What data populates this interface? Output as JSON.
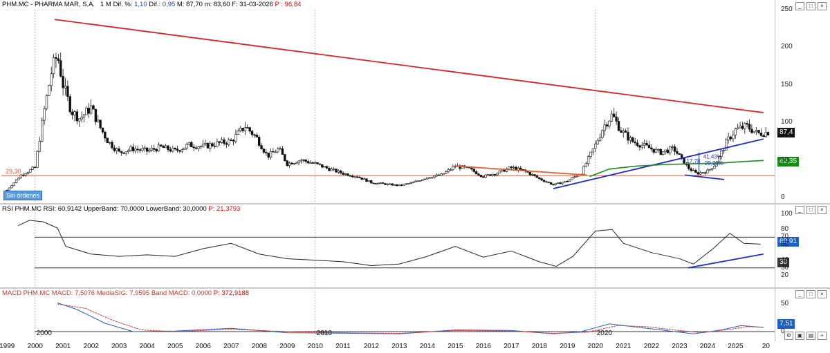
{
  "price_panel": {
    "header": {
      "symbol": "PHM.MC - PHARMA MAR, S.A.",
      "interval": "1 M",
      "dif_pct_label": "Dif. %:",
      "dif_pct": "1,10",
      "dif_label": "Dif.:",
      "dif": "0,95",
      "max_label": "M:",
      "max": "87,70",
      "min_label": "m:",
      "min": "83,60",
      "date_label": "F:",
      "date": "31-03-2026",
      "p_label": "P :",
      "p": "96,84"
    },
    "ticks": [
      "250",
      "200",
      "150",
      "100",
      "50",
      "0"
    ],
    "tags": {
      "price": "87,4",
      "ma": "49,35"
    },
    "support_label": "29,30",
    "badge": "Sin órdenes",
    "annotations": {
      "a": "17,78",
      "b": "41,43%",
      "c": "29,29%"
    }
  },
  "rsi_panel": {
    "header": "RSI PHM.MC RSI: 60,9142 UpperBand: 70,0000 LowerBand: 30,0000",
    "header_p": "P: 21,3793",
    "ticks": [
      "100",
      "80",
      "70",
      "60",
      "40",
      "30",
      "20"
    ],
    "tags": {
      "value": "60,91",
      "lower": "30"
    }
  },
  "macd_panel": {
    "header": "MACD PHM.MC MACD: 7,5076 MediaSIG: 7,9595 Band MACD: 0,0000",
    "header_p": "P: 372,9188",
    "ticks": [
      "50",
      "0"
    ],
    "tags": {
      "value": "7,51"
    }
  },
  "x_axis": {
    "years": [
      "1999",
      "2000",
      "2001",
      "2002",
      "2003",
      "2004",
      "2005",
      "2006",
      "2007",
      "2008",
      "2009",
      "2010",
      "2011",
      "2012",
      "2013",
      "2014",
      "2015",
      "2016",
      "2017",
      "2018",
      "2019",
      "2020",
      "2021",
      "2022",
      "2023",
      "2024",
      "2025",
      "20"
    ],
    "decade_labels": [
      "2000",
      "2010",
      "2020"
    ]
  },
  "chart_data": [
    {
      "type": "candlestick",
      "title": "PHM.MC - PHARMA MAR, S.A.",
      "interval": "1 M",
      "ylim": [
        0,
        250
      ],
      "x_range": [
        "1999",
        "2026"
      ],
      "close_points": [
        {
          "x": 1999.0,
          "y": 10
        },
        {
          "x": 1999.5,
          "y": 30
        },
        {
          "x": 2000.0,
          "y": 40
        },
        {
          "x": 2000.3,
          "y": 110
        },
        {
          "x": 2000.6,
          "y": 170
        },
        {
          "x": 2000.8,
          "y": 190
        },
        {
          "x": 2001.0,
          "y": 150
        },
        {
          "x": 2001.3,
          "y": 115
        },
        {
          "x": 2001.6,
          "y": 105
        },
        {
          "x": 2002.0,
          "y": 120
        },
        {
          "x": 2002.3,
          "y": 95
        },
        {
          "x": 2002.6,
          "y": 75
        },
        {
          "x": 2003.0,
          "y": 60
        },
        {
          "x": 2003.5,
          "y": 65
        },
        {
          "x": 2004.0,
          "y": 62
        },
        {
          "x": 2004.5,
          "y": 67
        },
        {
          "x": 2005.0,
          "y": 62
        },
        {
          "x": 2005.5,
          "y": 70
        },
        {
          "x": 2006.0,
          "y": 68
        },
        {
          "x": 2006.5,
          "y": 72
        },
        {
          "x": 2007.0,
          "y": 75
        },
        {
          "x": 2007.5,
          "y": 95
        },
        {
          "x": 2007.9,
          "y": 80
        },
        {
          "x": 2008.3,
          "y": 55
        },
        {
          "x": 2008.7,
          "y": 65
        },
        {
          "x": 2009.0,
          "y": 45
        },
        {
          "x": 2009.5,
          "y": 50
        },
        {
          "x": 2010.0,
          "y": 45
        },
        {
          "x": 2010.5,
          "y": 38
        },
        {
          "x": 2011.0,
          "y": 32
        },
        {
          "x": 2011.5,
          "y": 28
        },
        {
          "x": 2012.0,
          "y": 20
        },
        {
          "x": 2012.5,
          "y": 18
        },
        {
          "x": 2013.0,
          "y": 16
        },
        {
          "x": 2013.5,
          "y": 20
        },
        {
          "x": 2014.0,
          "y": 27
        },
        {
          "x": 2014.5,
          "y": 30
        },
        {
          "x": 2015.0,
          "y": 42
        },
        {
          "x": 2015.5,
          "y": 38
        },
        {
          "x": 2016.0,
          "y": 28
        },
        {
          "x": 2016.5,
          "y": 33
        },
        {
          "x": 2017.0,
          "y": 40
        },
        {
          "x": 2017.5,
          "y": 35
        },
        {
          "x": 2018.0,
          "y": 25
        },
        {
          "x": 2018.5,
          "y": 17
        },
        {
          "x": 2019.0,
          "y": 22
        },
        {
          "x": 2019.5,
          "y": 33
        },
        {
          "x": 2020.0,
          "y": 70
        },
        {
          "x": 2020.3,
          "y": 95
        },
        {
          "x": 2020.6,
          "y": 110
        },
        {
          "x": 2020.9,
          "y": 90
        },
        {
          "x": 2021.3,
          "y": 75
        },
        {
          "x": 2021.8,
          "y": 68
        },
        {
          "x": 2022.3,
          "y": 60
        },
        {
          "x": 2022.8,
          "y": 65
        },
        {
          "x": 2023.0,
          "y": 55
        },
        {
          "x": 2023.3,
          "y": 40
        },
        {
          "x": 2023.6,
          "y": 32
        },
        {
          "x": 2024.0,
          "y": 35
        },
        {
          "x": 2024.3,
          "y": 45
        },
        {
          "x": 2024.7,
          "y": 75
        },
        {
          "x": 2025.0,
          "y": 90
        },
        {
          "x": 2025.4,
          "y": 95
        },
        {
          "x": 2025.8,
          "y": 85
        },
        {
          "x": 2026.2,
          "y": 87.4
        }
      ],
      "trendlines": [
        {
          "color": "#e02020",
          "from": {
            "x": 2000.7,
            "y": 237
          },
          "to": {
            "x": 2026.0,
            "y": 113
          }
        },
        {
          "color": "#1a2ad8",
          "from": {
            "x": 2018.5,
            "y": 12
          },
          "to": {
            "x": 2026.0,
            "y": 78
          }
        },
        {
          "color": "#1a2ad8",
          "from": {
            "x": 2023.2,
            "y": 30
          },
          "to": {
            "x": 2024.6,
            "y": 24
          }
        },
        {
          "color": "#e06030",
          "from": {
            "x": 2015.0,
            "y": 42
          },
          "to": {
            "x": 2019.7,
            "y": 30
          }
        }
      ],
      "moving_average": [
        {
          "x": 2019.8,
          "y": 28
        },
        {
          "x": 2020.5,
          "y": 38
        },
        {
          "x": 2021.5,
          "y": 42
        },
        {
          "x": 2022.5,
          "y": 44
        },
        {
          "x": 2023.5,
          "y": 45
        },
        {
          "x": 2024.5,
          "y": 46
        },
        {
          "x": 2025.3,
          "y": 48
        },
        {
          "x": 2026.0,
          "y": 49.35
        }
      ],
      "support_level": 29.3
    },
    {
      "type": "line",
      "title": "RSI PHM.MC",
      "ylim": [
        10,
        100
      ],
      "bands": {
        "upper": 70,
        "lower": 30
      },
      "points": [
        {
          "x": 1999.4,
          "y": 85
        },
        {
          "x": 1999.8,
          "y": 92
        },
        {
          "x": 2000.3,
          "y": 90
        },
        {
          "x": 2000.8,
          "y": 82
        },
        {
          "x": 2001.1,
          "y": 58
        },
        {
          "x": 2002.0,
          "y": 48
        },
        {
          "x": 2003.0,
          "y": 45
        },
        {
          "x": 2004.0,
          "y": 47
        },
        {
          "x": 2005.0,
          "y": 45
        },
        {
          "x": 2006.0,
          "y": 55
        },
        {
          "x": 2007.0,
          "y": 62
        },
        {
          "x": 2008.0,
          "y": 48
        },
        {
          "x": 2009.0,
          "y": 42
        },
        {
          "x": 2010.0,
          "y": 40
        },
        {
          "x": 2011.0,
          "y": 38
        },
        {
          "x": 2012.0,
          "y": 33
        },
        {
          "x": 2013.0,
          "y": 35
        },
        {
          "x": 2014.0,
          "y": 45
        },
        {
          "x": 2015.0,
          "y": 58
        },
        {
          "x": 2016.0,
          "y": 44
        },
        {
          "x": 2017.0,
          "y": 52
        },
        {
          "x": 2018.0,
          "y": 38
        },
        {
          "x": 2018.6,
          "y": 32
        },
        {
          "x": 2019.2,
          "y": 45
        },
        {
          "x": 2020.0,
          "y": 78
        },
        {
          "x": 2020.6,
          "y": 80
        },
        {
          "x": 2021.0,
          "y": 62
        },
        {
          "x": 2022.0,
          "y": 50
        },
        {
          "x": 2023.0,
          "y": 42
        },
        {
          "x": 2023.5,
          "y": 35
        },
        {
          "x": 2024.2,
          "y": 55
        },
        {
          "x": 2024.8,
          "y": 75
        },
        {
          "x": 2025.3,
          "y": 62
        },
        {
          "x": 2025.9,
          "y": 60.91
        }
      ],
      "trendline": {
        "from": {
          "x": 2023.3,
          "y": 30
        },
        "to": {
          "x": 2026.0,
          "y": 48
        }
      }
    },
    {
      "type": "line",
      "title": "MACD PHM.MC",
      "ylim": [
        -10,
        60
      ],
      "series": [
        {
          "name": "MACD",
          "color": "#2060d0",
          "points": [
            {
              "x": 2000.8,
              "y": 52
            },
            {
              "x": 2001.5,
              "y": 40
            },
            {
              "x": 2002.5,
              "y": 15
            },
            {
              "x": 2003.5,
              "y": 0
            },
            {
              "x": 2005.0,
              "y": 1
            },
            {
              "x": 2007.0,
              "y": 6
            },
            {
              "x": 2009.0,
              "y": -2
            },
            {
              "x": 2011.0,
              "y": -3
            },
            {
              "x": 2013.0,
              "y": -4
            },
            {
              "x": 2015.0,
              "y": 3
            },
            {
              "x": 2017.0,
              "y": 2
            },
            {
              "x": 2018.5,
              "y": -4
            },
            {
              "x": 2019.5,
              "y": 0
            },
            {
              "x": 2020.5,
              "y": 14
            },
            {
              "x": 2021.5,
              "y": 8
            },
            {
              "x": 2022.5,
              "y": 2
            },
            {
              "x": 2023.5,
              "y": -4
            },
            {
              "x": 2024.5,
              "y": 3
            },
            {
              "x": 2025.2,
              "y": 11
            },
            {
              "x": 2026.0,
              "y": 7.51
            }
          ]
        },
        {
          "name": "MediaSIG",
          "color": "#e03030",
          "points": [
            {
              "x": 2000.8,
              "y": 50
            },
            {
              "x": 2001.8,
              "y": 42
            },
            {
              "x": 2002.8,
              "y": 20
            },
            {
              "x": 2003.8,
              "y": 3
            },
            {
              "x": 2005.0,
              "y": 0
            },
            {
              "x": 2007.0,
              "y": 4
            },
            {
              "x": 2009.0,
              "y": 0
            },
            {
              "x": 2011.0,
              "y": -2
            },
            {
              "x": 2013.0,
              "y": -3
            },
            {
              "x": 2015.0,
              "y": 2
            },
            {
              "x": 2017.0,
              "y": 1
            },
            {
              "x": 2018.5,
              "y": -3
            },
            {
              "x": 2019.7,
              "y": -1
            },
            {
              "x": 2020.8,
              "y": 11
            },
            {
              "x": 2021.8,
              "y": 9
            },
            {
              "x": 2022.8,
              "y": 3
            },
            {
              "x": 2023.8,
              "y": -2
            },
            {
              "x": 2024.8,
              "y": 4
            },
            {
              "x": 2025.4,
              "y": 9
            },
            {
              "x": 2026.0,
              "y": 7.96
            }
          ]
        }
      ]
    }
  ]
}
